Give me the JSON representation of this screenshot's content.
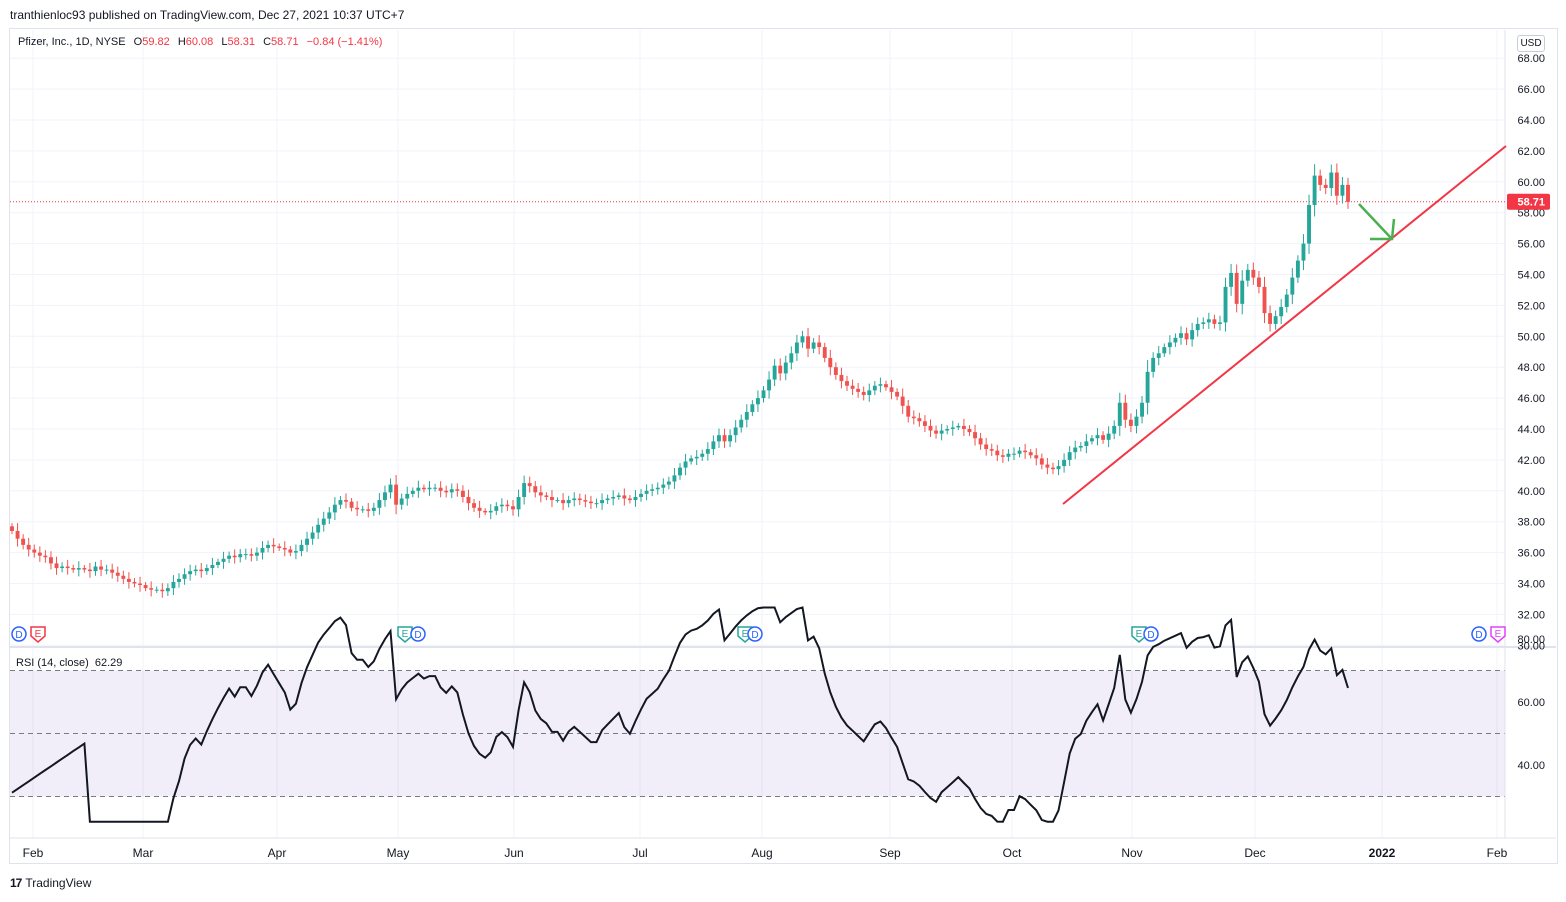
{
  "header": {
    "text": "tranthienloc93 published on TradingView.com, Dec 27, 2021 10:37 UTC+7"
  },
  "legend": {
    "symbol": "Pfizer, Inc., 1D, NYSE",
    "o_label": "O",
    "o_value": "59.82",
    "h_label": "H",
    "h_value": "60.08",
    "l_label": "L",
    "l_value": "58.31",
    "c_label": "C",
    "c_value": "58.71",
    "change": "−0.84 (−1.41%)"
  },
  "currency": "USD",
  "rsi_legend": {
    "label": "RSI (14, close)",
    "value": "62.29"
  },
  "footer": {
    "brand": "TradingView"
  },
  "colors": {
    "up": "#26a69a",
    "down": "#ef5350",
    "trendline": "#f23645",
    "arrow": "#4caf50",
    "rsi_line": "#131722",
    "rsi_band": "#7e57c2",
    "price_label_bg": "#f23645",
    "grid": "#f0f3fa"
  },
  "icons": {
    "earnings": "earnings-flag-icon",
    "dividends": "dividends-circle-icon"
  },
  "chart_data": [
    {
      "type": "candlestick",
      "name": "price",
      "interval": "1D",
      "y_axis_ticks": [
        "68.00",
        "66.00",
        "64.00",
        "62.00",
        "60.00",
        "58.00",
        "56.00",
        "54.00",
        "52.00",
        "50.00",
        "48.00",
        "46.00",
        "44.00",
        "42.00",
        "40.00",
        "38.00",
        "36.00",
        "34.00",
        "32.00",
        "30.00"
      ],
      "ylim": [
        30,
        69
      ],
      "x_axis_ticks": [
        "Feb",
        "Mar",
        "Apr",
        "May",
        "Jun",
        "Jul",
        "Aug",
        "Sep",
        "Oct",
        "Nov",
        "Dec",
        "2022",
        "Feb"
      ],
      "last_price": "58.71",
      "closes": [
        37.4,
        36.9,
        36.5,
        36.2,
        36.0,
        35.8,
        35.7,
        35.3,
        35.0,
        35.1,
        35.0,
        34.9,
        35.0,
        34.9,
        34.8,
        35.1,
        34.9,
        34.9,
        34.7,
        34.5,
        34.3,
        34.1,
        34.0,
        33.9,
        33.7,
        33.6,
        33.6,
        33.5,
        33.7,
        34.1,
        34.3,
        34.6,
        34.8,
        34.9,
        34.8,
        35.0,
        35.2,
        35.4,
        35.6,
        35.8,
        35.7,
        35.9,
        35.9,
        35.8,
        36.0,
        36.3,
        36.5,
        36.4,
        36.3,
        36.2,
        36.0,
        36.1,
        36.5,
        36.9,
        37.3,
        37.8,
        38.2,
        38.6,
        39.1,
        39.4,
        39.3,
        38.9,
        38.8,
        38.8,
        38.7,
        38.9,
        39.4,
        39.9,
        40.4,
        39.1,
        39.5,
        39.8,
        40.0,
        40.2,
        40.1,
        40.2,
        40.2,
        40.0,
        39.9,
        40.1,
        40.0,
        39.6,
        39.2,
        38.9,
        38.7,
        38.6,
        38.7,
        39.0,
        39.1,
        39.0,
        38.8,
        39.6,
        40.5,
        40.3,
        39.9,
        39.7,
        39.6,
        39.4,
        39.4,
        39.2,
        39.4,
        39.5,
        39.4,
        39.3,
        39.2,
        39.2,
        39.4,
        39.5,
        39.6,
        39.7,
        39.5,
        39.4,
        39.6,
        39.8,
        40.0,
        40.1,
        40.2,
        40.4,
        40.6,
        41.0,
        41.5,
        41.9,
        42.1,
        42.2,
        42.4,
        42.7,
        43.2,
        43.6,
        43.2,
        43.6,
        44.1,
        44.6,
        45.1,
        45.6,
        46.0,
        46.5,
        47.2,
        48.1,
        47.6,
        48.3,
        48.9,
        49.6,
        50.0,
        49.2,
        49.6,
        49.3,
        48.6,
        48.0,
        47.5,
        47.1,
        46.8,
        46.6,
        46.4,
        46.2,
        46.5,
        46.8,
        46.9,
        46.7,
        46.4,
        46.1,
        45.5,
        44.8,
        44.7,
        44.5,
        44.2,
        43.9,
        43.7,
        43.9,
        44.0,
        44.1,
        44.2,
        44.0,
        43.8,
        43.4,
        43.0,
        42.7,
        42.6,
        42.3,
        42.2,
        42.4,
        42.4,
        42.6,
        42.5,
        42.3,
        42.1,
        41.7,
        41.5,
        41.4,
        41.6,
        42.0,
        42.5,
        42.8,
        42.9,
        43.2,
        43.4,
        43.6,
        43.3,
        43.7,
        44.2,
        45.7,
        44.6,
        44.2,
        44.8,
        45.7,
        47.7,
        48.6,
        48.9,
        49.3,
        49.6,
        49.9,
        50.2,
        49.8,
        50.4,
        50.8,
        50.9,
        51.1,
        50.8,
        50.9,
        53.2,
        54.1,
        52.1,
        53.6,
        54.3,
        53.8,
        53.2,
        51.5,
        50.8,
        51.3,
        51.9,
        52.7,
        53.8,
        54.9,
        56.0,
        58.5,
        60.4,
        59.8,
        59.6,
        60.6,
        59.1,
        59.8,
        58.7
      ]
    },
    {
      "type": "line",
      "name": "RSI (14, close)",
      "y_axis_ticks": [
        "80.00",
        "60.00",
        "40.00"
      ],
      "ylim": [
        24,
        88
      ],
      "band": [
        30,
        70
      ],
      "midline": 50
    }
  ]
}
